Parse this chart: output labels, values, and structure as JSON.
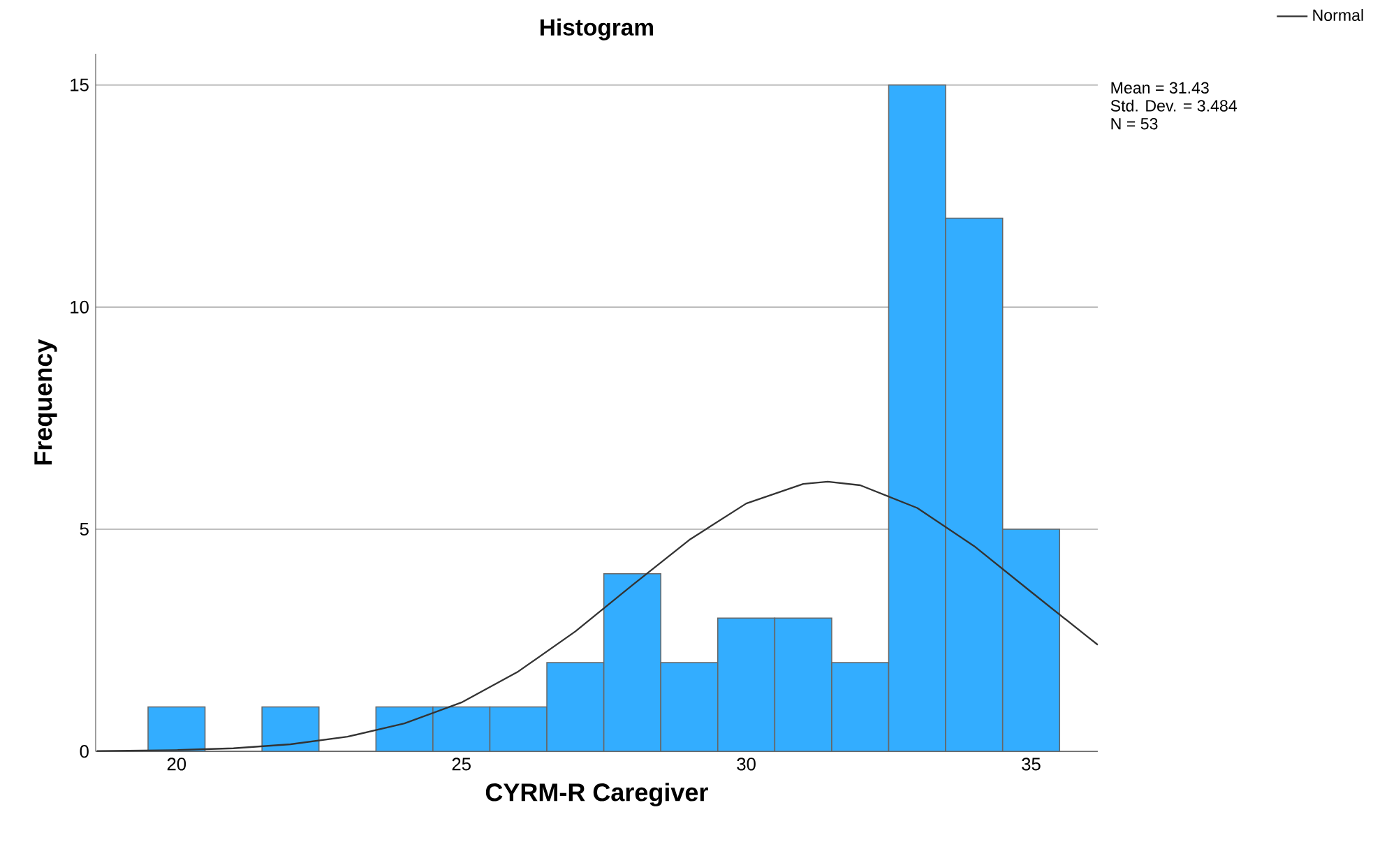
{
  "chart_data": {
    "type": "histogram",
    "title": "Histogram",
    "xlabel": "CYRM-R Caregiver",
    "ylabel": "Frequency",
    "series": [
      {
        "bins": [
          19.5,
          20.5,
          21.5,
          22.5,
          23.5,
          24.5,
          25.5,
          26.5,
          27.5,
          28.5,
          29.5,
          30.5,
          31.5,
          32.5,
          33.5,
          34.5,
          35.5
        ],
        "values": [
          1,
          0,
          1,
          0,
          1,
          1,
          1,
          2,
          4,
          2,
          3,
          3,
          2,
          15,
          12,
          5
        ],
        "color": "#33adff"
      },
      {
        "type": "line",
        "name": "Normal",
        "color": "#333333",
        "x": [
          18.6,
          20,
          21,
          22,
          23,
          24,
          25,
          26,
          27,
          28,
          29,
          30,
          31,
          31.43,
          32,
          33,
          34,
          35,
          36,
          36.17
        ],
        "values": [
          0.01,
          0.03,
          0.07,
          0.16,
          0.33,
          0.63,
          1.1,
          1.8,
          2.7,
          3.74,
          4.76,
          5.58,
          6.02,
          6.07,
          5.99,
          5.48,
          4.62,
          3.59,
          2.57,
          2.4
        ]
      }
    ],
    "annotations": [
      "Mean = 31.43",
      "Std. Dev. = 3.484",
      "N = 53"
    ],
    "xlim": [
      18.58,
      36.17
    ],
    "ylim": [
      0,
      15.7
    ],
    "xticks": [
      20,
      25,
      30,
      35
    ],
    "yticks": [
      0,
      5,
      10,
      15
    ],
    "grid": "y",
    "legend": "top right",
    "marker": "none",
    "line_style": "solid"
  }
}
